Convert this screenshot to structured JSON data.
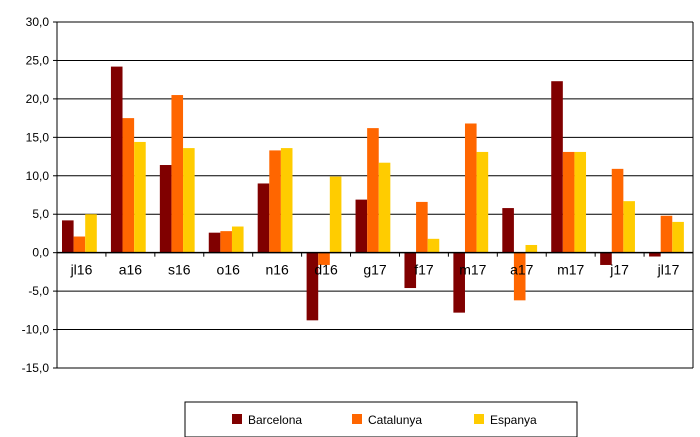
{
  "chart_data": {
    "type": "bar",
    "categories": [
      "jl16",
      "a16",
      "s16",
      "o16",
      "n16",
      "d16",
      "g17",
      "f17",
      "m17",
      "a17",
      "m17",
      "j17",
      "jl17"
    ],
    "series": [
      {
        "name": "Barcelona",
        "color": "#800000",
        "values": [
          4.2,
          24.2,
          11.4,
          2.6,
          9.0,
          -8.8,
          6.9,
          -4.6,
          -7.8,
          5.8,
          22.3,
          -1.6,
          -0.5
        ]
      },
      {
        "name": "Catalunya",
        "color": "#FF6600",
        "values": [
          2.1,
          17.5,
          20.5,
          2.8,
          13.3,
          -1.6,
          16.2,
          6.6,
          16.8,
          -6.2,
          13.1,
          10.9,
          4.8
        ]
      },
      {
        "name": "Espanya",
        "color": "#FFCC00",
        "values": [
          5.0,
          14.4,
          13.6,
          3.4,
          13.6,
          9.9,
          11.7,
          1.8,
          13.1,
          1.0,
          13.1,
          6.7,
          4.0
        ]
      }
    ],
    "ylim": [
      -15,
      30
    ],
    "yticks": [
      "-15,0",
      "-10,0",
      "-5,0",
      "0,0",
      "5,0",
      "10,0",
      "15,0",
      "20,0",
      "25,0",
      "30,0"
    ],
    "ytick_values": [
      -15,
      -10,
      -5,
      0,
      5,
      10,
      15,
      20,
      25,
      30
    ],
    "grid": true,
    "legend_position": "bottom"
  }
}
